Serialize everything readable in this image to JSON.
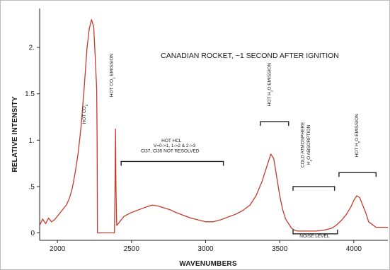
{
  "chart_data": {
    "type": "line",
    "title": "CANADIAN ROCKET, ~1 SECOND AFTER IGNITION",
    "xlabel": "WAVENUMBERS",
    "ylabel": "RELATIVE INTENSITY",
    "xlim": [
      1880,
      4230
    ],
    "ylim": [
      -0.08,
      2.42
    ],
    "x_ticks": [
      2000,
      2500,
      3000,
      3500,
      4000
    ],
    "x_tick_labels": [
      "2000",
      "2500",
      "3000",
      "3500",
      "4000"
    ],
    "y_ticks": [
      0,
      0.5,
      1,
      1.5,
      2
    ],
    "y_tick_labels": [
      "0",
      ".5",
      "1.",
      "1.5",
      "2."
    ],
    "grid": false,
    "color": "#c63a2a",
    "series": [
      {
        "x": [
          1880,
          1900,
          1920,
          1940,
          1960,
          1980,
          2000,
          2020,
          2040,
          2060,
          2080,
          2100,
          2120,
          2140,
          2160,
          2180,
          2200,
          2215,
          2230,
          2245,
          2255,
          2265,
          2268,
          2270,
          2385,
          2388,
          2392,
          2395,
          2400,
          2420,
          2450,
          2500,
          2550,
          2600,
          2640,
          2680,
          2720,
          2760,
          2800,
          2850,
          2900,
          2950,
          3000,
          3050,
          3100,
          3150,
          3200,
          3250,
          3300,
          3340,
          3380,
          3400,
          3420,
          3440,
          3460,
          3480,
          3500,
          3520,
          3540,
          3560,
          3580,
          3600,
          3620,
          3640,
          3660,
          3700,
          3750,
          3800,
          3850,
          3880,
          3920,
          3950,
          3980,
          4000,
          4020,
          4040,
          4060,
          4080,
          4100,
          4150,
          4200,
          4230
        ],
        "y": [
          0.08,
          0.15,
          0.1,
          0.16,
          0.12,
          0.14,
          0.18,
          0.22,
          0.26,
          0.3,
          0.37,
          0.48,
          0.65,
          0.86,
          1.15,
          1.55,
          2.0,
          2.2,
          2.3,
          2.22,
          1.9,
          1.55,
          1.0,
          0.0,
          0.0,
          0.4,
          1.12,
          0.5,
          0.08,
          0.12,
          0.18,
          0.22,
          0.25,
          0.28,
          0.3,
          0.29,
          0.27,
          0.25,
          0.22,
          0.19,
          0.16,
          0.14,
          0.12,
          0.12,
          0.14,
          0.17,
          0.2,
          0.24,
          0.3,
          0.4,
          0.55,
          0.65,
          0.75,
          0.85,
          0.8,
          0.6,
          0.4,
          0.25,
          0.15,
          0.1,
          0.05,
          0.03,
          0.02,
          0.02,
          0.02,
          0.02,
          0.02,
          0.03,
          0.05,
          0.08,
          0.14,
          0.2,
          0.28,
          0.35,
          0.4,
          0.38,
          0.3,
          0.22,
          0.12,
          0.06,
          0.06,
          0.06
        ]
      }
    ],
    "annotations": [
      {
        "id": "hot-co2",
        "text": "HOT CO2",
        "base": "HOT CO",
        "sub": "2",
        "after": "",
        "x": 2190,
        "y": 1.28,
        "rotation": -90
      },
      {
        "id": "hot-co2-emission",
        "text": "HOT CO2 EMISSION",
        "base": "HOT CO",
        "sub": "2",
        "after": " EMISSION",
        "x": 2375,
        "y": 1.7,
        "rotation": -90
      },
      {
        "id": "hot-hcl",
        "text": "HOT HCL",
        "x": 2770,
        "y": 0.98
      },
      {
        "id": "hot-hcl-bands",
        "text": "V=0->1, 1->2 & 2->3",
        "x": 2790,
        "y": 0.925
      },
      {
        "id": "hot-hcl-isotopes",
        "text": "Cl37, Cl35 NOT RESOLVED",
        "x": 2760,
        "y": 0.87
      },
      {
        "id": "hot-h2o-emission-1",
        "text": "HOT H2O EMISSION",
        "base": "HOT H",
        "sub": "2",
        "after": "O EMISSION",
        "x": 3440,
        "y": 1.6,
        "rotation": -90
      },
      {
        "id": "cold-atmosphere",
        "text": "COLD ATMOSPHERE",
        "x": 3665,
        "y": 0.95,
        "rotation": -90
      },
      {
        "id": "h2o-absorption",
        "text": "H2O ABSORPTION",
        "base": "H",
        "sub": "2",
        "after": "O ABSORPTION",
        "x": 3705,
        "y": 0.95,
        "rotation": -90
      },
      {
        "id": "hot-h2o-emission-2",
        "text": "HOT H2O EMISSION",
        "base": "HOT H",
        "sub": "2",
        "after": "O EMISSION",
        "x": 4030,
        "y": 1.05,
        "rotation": -90
      },
      {
        "id": "noise-level",
        "text": "NOISE LEVEL",
        "x": 3735,
        "y": -0.05
      }
    ],
    "brackets": [
      {
        "id": "hcl-bracket",
        "x0": 2430,
        "x1": 3120,
        "y": 0.77,
        "dir": "down"
      },
      {
        "id": "h2o-bracket-1",
        "x0": 3370,
        "x1": 3560,
        "y": 1.2,
        "dir": "down"
      },
      {
        "id": "cold-bracket",
        "x0": 3590,
        "x1": 3870,
        "y": 0.5,
        "dir": "down"
      },
      {
        "id": "h2o-bracket-2",
        "x0": 3900,
        "x1": 4150,
        "y": 0.65,
        "dir": "down"
      },
      {
        "id": "noise-bracket",
        "x0": 3590,
        "x1": 3890,
        "y": -0.01,
        "dir": "up"
      }
    ]
  }
}
